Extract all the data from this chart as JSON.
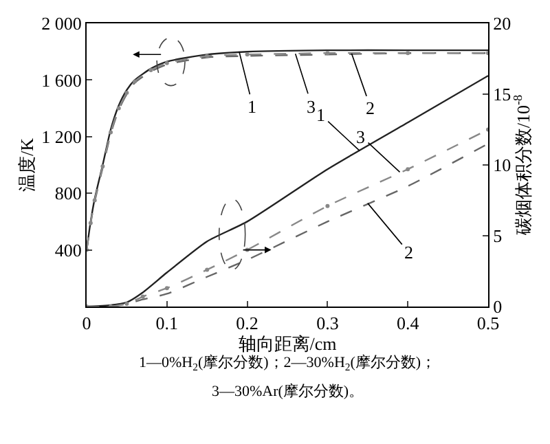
{
  "chart_data": {
    "type": "line",
    "xlabel": "轴向距离/cm",
    "ylabel": "温度/K",
    "y2label": "碳烟体积分数/10$^{-8}$",
    "xlim": [
      0,
      0.5
    ],
    "xticks": [
      0,
      0.1,
      0.2,
      0.3,
      0.4,
      0.5
    ],
    "ylim": [
      0,
      2000
    ],
    "yticks": [
      400,
      800,
      {
        "value": 1200,
        "label": "1 200"
      },
      {
        "value": 1600,
        "label": "1 600"
      },
      {
        "value": 2000,
        "label": "2 000"
      }
    ],
    "y2lim": [
      0,
      20
    ],
    "y2ticks": [
      0,
      5,
      10,
      15,
      20
    ],
    "series": [
      {
        "color": "#222222",
        "line_style": "solid",
        "marker": "none",
        "x": [
          0,
          0.005,
          0.01,
          0.02,
          0.03,
          0.04,
          0.05,
          0.06,
          0.08,
          0.1,
          0.15,
          0.2,
          0.3,
          0.4,
          0.5
        ],
        "values": [
          400,
          600,
          760,
          1000,
          1250,
          1420,
          1530,
          1600,
          1680,
          1730,
          1780,
          1800,
          1810,
          1810,
          1810
        ]
      },
      {
        "color": "#666666",
        "line_style": "dashed",
        "marker": "none",
        "x": [
          0,
          0.005,
          0.01,
          0.02,
          0.03,
          0.04,
          0.05,
          0.06,
          0.08,
          0.1,
          0.15,
          0.2,
          0.3,
          0.4,
          0.5
        ],
        "values": [
          400,
          590,
          740,
          980,
          1220,
          1390,
          1500,
          1580,
          1660,
          1710,
          1760,
          1770,
          1780,
          1790,
          1790
        ]
      },
      {
        "color": "#888888",
        "line_style": "dashed",
        "marker": "circle",
        "x": [
          0,
          0.005,
          0.01,
          0.02,
          0.03,
          0.04,
          0.05,
          0.06,
          0.08,
          0.1,
          0.15,
          0.2,
          0.3,
          0.4,
          0.5
        ],
        "values": [
          400,
          590,
          750,
          990,
          1230,
          1400,
          1510,
          1590,
          1670,
          1720,
          1770,
          1780,
          1790,
          1790,
          1790
        ]
      },
      {
        "axis": "y2",
        "color": "#222222",
        "line_style": "solid",
        "marker": "none",
        "x": [
          0,
          0.03,
          0.05,
          0.07,
          0.1,
          0.15,
          0.2,
          0.3,
          0.4,
          0.5
        ],
        "values": [
          0,
          0.1,
          0.3,
          1.0,
          2.4,
          4.6,
          6.0,
          9.7,
          13.0,
          16.3
        ]
      },
      {
        "axis": "y2",
        "color": "#666666",
        "line_style": "dashed",
        "marker": "none",
        "x": [
          0,
          0.03,
          0.05,
          0.07,
          0.1,
          0.15,
          0.2,
          0.3,
          0.4,
          0.5
        ],
        "values": [
          0,
          0,
          0.2,
          0.5,
          0.9,
          2.1,
          3.3,
          6.0,
          8.5,
          11.5
        ]
      },
      {
        "axis": "y2",
        "color": "#888888",
        "line_style": "dashed",
        "marker": "circle",
        "x": [
          0,
          0.03,
          0.05,
          0.07,
          0.1,
          0.15,
          0.2,
          0.3,
          0.4,
          0.5
        ],
        "values": [
          0,
          0,
          0.2,
          0.7,
          1.3,
          2.6,
          4.0,
          7.1,
          9.7,
          12.5
        ]
      }
    ],
    "annotations": [
      {
        "text": "1",
        "x": 0.19,
        "y": 1800
      },
      {
        "text": "3",
        "x": 0.26,
        "y": 1785
      },
      {
        "text": "2",
        "x": 0.33,
        "y": 1787
      },
      {
        "text": "1",
        "x": 0.34,
        "y": 1100
      },
      {
        "text": "3",
        "x": 0.39,
        "y": 950
      },
      {
        "text": "2",
        "x": 0.35,
        "y": 730
      },
      "1—0%H$_{2}$(摩尔分数)；2—30%H$_{2}$(摩尔分数)；",
      "3—30%Ar(摩尔分数)。"
    ]
  }
}
